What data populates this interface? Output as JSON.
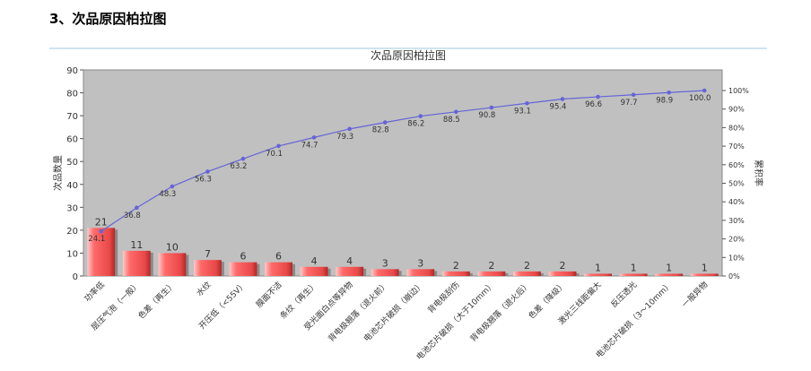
{
  "page": {
    "heading": "3、次品原因柏拉图"
  },
  "chart_data": {
    "type": "bar",
    "title": "次品原因柏拉图",
    "xlabel": "",
    "ylabel": "次品数量",
    "y2label": "累积率",
    "ylim": [
      0,
      90
    ],
    "y_ticks": [
      0,
      10,
      20,
      30,
      40,
      50,
      60,
      70,
      80,
      90
    ],
    "y2_ticks": [
      "0%",
      "10%",
      "20%",
      "30%",
      "40%",
      "50%",
      "60%",
      "70%",
      "80%",
      "90%",
      "100%"
    ],
    "grid": false,
    "categories": [
      "功率低",
      "层压气泡（一般）",
      "色差（再生）",
      "水纹",
      "开压低（<55V）",
      "膜面不洁",
      "条纹（再生）",
      "受光面白点等异物",
      "背电极翘落（退火前）",
      "电池芯片破损（崩边）",
      "背电极刮伤",
      "电池芯片破损（大于10mm）",
      "背电极翘落（退火后）",
      "色差（降级）",
      "激光三线距偏大",
      "反压透光",
      "电池芯片破损（3～10mm）",
      "一般异物"
    ],
    "values": [
      21,
      11,
      10,
      7,
      6,
      6,
      4,
      4,
      3,
      3,
      2,
      2,
      2,
      2,
      1,
      1,
      1,
      1
    ],
    "cumulative_percent": [
      24.1,
      36.8,
      48.3,
      56.3,
      63.2,
      70.1,
      74.7,
      79.3,
      82.8,
      86.2,
      88.5,
      90.8,
      93.1,
      95.4,
      96.6,
      97.7,
      98.9,
      100.0
    ],
    "colors": {
      "bar": "#ff6262",
      "line": "#6464d8",
      "plot_bg": "#c0c0c0"
    }
  }
}
